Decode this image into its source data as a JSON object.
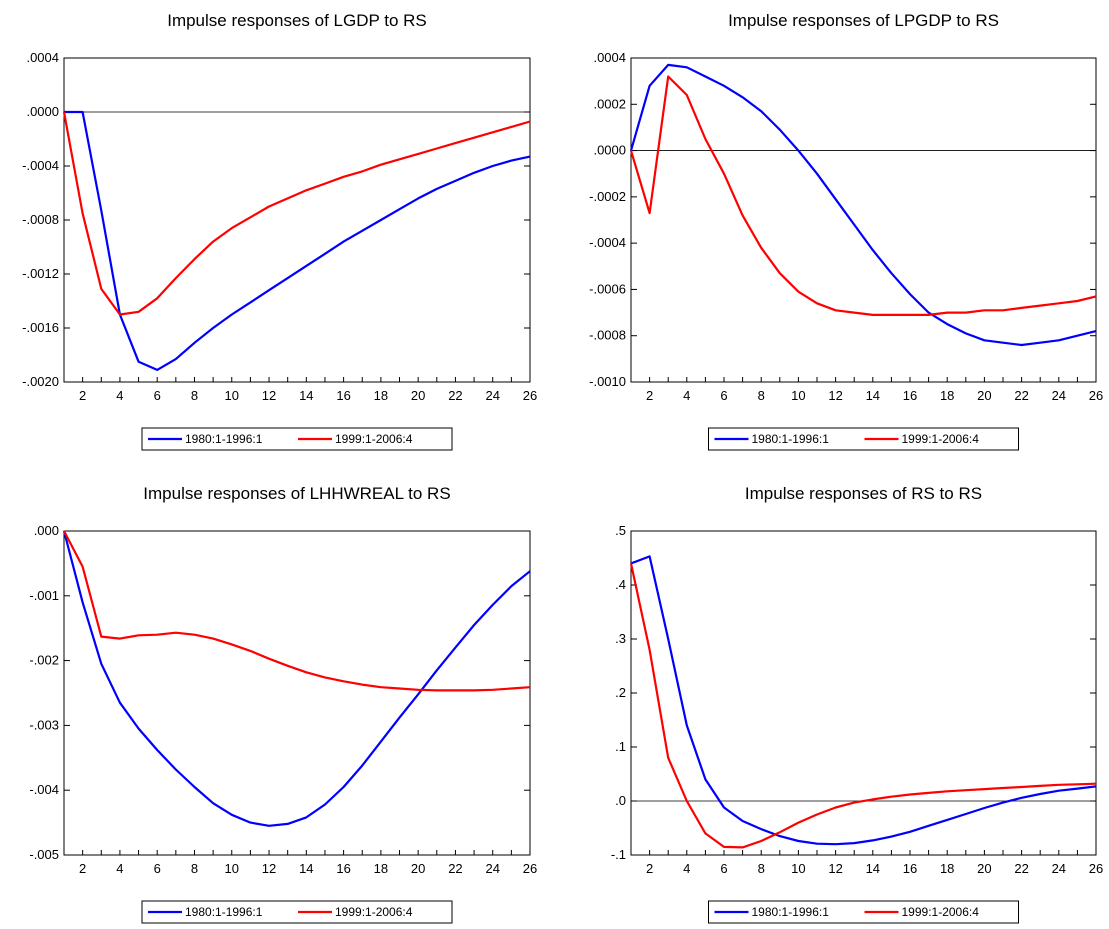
{
  "chart_data": [
    {
      "type": "line",
      "title": "Impulse responses of LGDP to RS",
      "ylim": [
        -0.002,
        0.0004
      ],
      "yticks": [
        ".0004",
        ".0000",
        "-.0004",
        "-.0008",
        "-.0012",
        "-.0016",
        "-.0020"
      ],
      "ytick_values": [
        0.0004,
        0.0,
        -0.0004,
        -0.0008,
        -0.0012,
        -0.0016,
        -0.002
      ],
      "xlim": [
        1,
        26
      ],
      "xticks": [
        "2",
        "4",
        "6",
        "8",
        "10",
        "12",
        "14",
        "16",
        "18",
        "20",
        "22",
        "24",
        "26"
      ],
      "zero_line": true,
      "x": [
        1,
        2,
        3,
        4,
        5,
        6,
        7,
        8,
        9,
        10,
        11,
        12,
        13,
        14,
        15,
        16,
        17,
        18,
        19,
        20,
        21,
        22,
        23,
        24,
        25,
        26
      ],
      "series": [
        {
          "name": "1980:1-1996:1",
          "color": "#0000ff",
          "values": [
            0,
            0,
            -0.00073,
            -0.0015,
            -0.00185,
            -0.00191,
            -0.00183,
            -0.00171,
            -0.0016,
            -0.0015,
            -0.00141,
            -0.00132,
            -0.00123,
            -0.00114,
            -0.00105,
            -0.00096,
            -0.00088,
            -0.0008,
            -0.00072,
            -0.00064,
            -0.00057,
            -0.00051,
            -0.00045,
            -0.0004,
            -0.00036,
            -0.00033
          ]
        },
        {
          "name": "1999:1-2006:4",
          "color": "#ff0000",
          "values": [
            0,
            -0.00075,
            -0.00131,
            -0.0015,
            -0.00148,
            -0.00138,
            -0.00123,
            -0.00109,
            -0.00096,
            -0.00086,
            -0.00078,
            -0.0007,
            -0.00064,
            -0.00058,
            -0.00053,
            -0.00048,
            -0.00044,
            -0.00039,
            -0.00035,
            -0.00031,
            -0.00027,
            -0.00023,
            -0.00019,
            -0.00015,
            -0.00011,
            -7e-05
          ]
        }
      ]
    },
    {
      "type": "line",
      "title": "Impulse responses of LPGDP to RS",
      "ylim": [
        -0.001,
        0.0004
      ],
      "yticks": [
        ".0004",
        ".0002",
        ".0000",
        "-.0002",
        "-.0004",
        "-.0006",
        "-.0008",
        "-.0010"
      ],
      "ytick_values": [
        0.0004,
        0.0002,
        0.0,
        -0.0002,
        -0.0004,
        -0.0006,
        -0.0008,
        -0.001
      ],
      "xlim": [
        1,
        26
      ],
      "xticks": [
        "2",
        "4",
        "6",
        "8",
        "10",
        "12",
        "14",
        "16",
        "18",
        "20",
        "22",
        "24",
        "26"
      ],
      "zero_line": true,
      "x": [
        1,
        2,
        3,
        4,
        5,
        6,
        7,
        8,
        9,
        10,
        11,
        12,
        13,
        14,
        15,
        16,
        17,
        18,
        19,
        20,
        21,
        22,
        23,
        24,
        25,
        26
      ],
      "series": [
        {
          "name": "1980:1-1996:1",
          "color": "#0000ff",
          "values": [
            0,
            0.00028,
            0.00037,
            0.00036,
            0.00032,
            0.00028,
            0.00023,
            0.00017,
            9e-05,
            0.0,
            -0.0001,
            -0.00021,
            -0.00032,
            -0.00043,
            -0.00053,
            -0.00062,
            -0.0007,
            -0.00075,
            -0.00079,
            -0.00082,
            -0.00083,
            -0.00084,
            -0.00083,
            -0.00082,
            -0.0008,
            -0.00078
          ]
        },
        {
          "name": "1999:1-2006:4",
          "color": "#ff0000",
          "values": [
            0,
            -0.00027,
            0.00032,
            0.00024,
            5e-05,
            -0.0001,
            -0.00028,
            -0.00042,
            -0.00053,
            -0.00061,
            -0.00066,
            -0.00069,
            -0.0007,
            -0.00071,
            -0.00071,
            -0.00071,
            -0.00071,
            -0.0007,
            -0.0007,
            -0.00069,
            -0.00069,
            -0.00068,
            -0.00067,
            -0.00066,
            -0.00065,
            -0.00063
          ]
        }
      ]
    },
    {
      "type": "line",
      "title": "Impulse responses of LHHWREAL to RS",
      "ylim": [
        -0.005,
        0.0
      ],
      "yticks": [
        ".000",
        "-.001",
        "-.002",
        "-.003",
        "-.004",
        "-.005"
      ],
      "ytick_values": [
        0.0,
        -0.001,
        -0.002,
        -0.003,
        -0.004,
        -0.005
      ],
      "xlim": [
        1,
        26
      ],
      "xticks": [
        "2",
        "4",
        "6",
        "8",
        "10",
        "12",
        "14",
        "16",
        "18",
        "20",
        "22",
        "24",
        "26"
      ],
      "zero_line": false,
      "x": [
        1,
        2,
        3,
        4,
        5,
        6,
        7,
        8,
        9,
        10,
        11,
        12,
        13,
        14,
        15,
        16,
        17,
        18,
        19,
        20,
        21,
        22,
        23,
        24,
        25,
        26
      ],
      "series": [
        {
          "name": "1980:1-1996:1",
          "color": "#0000ff",
          "values": [
            0,
            -0.0011,
            -0.00205,
            -0.00265,
            -0.00305,
            -0.00338,
            -0.00368,
            -0.00395,
            -0.0042,
            -0.00438,
            -0.0045,
            -0.00455,
            -0.00452,
            -0.00442,
            -0.00422,
            -0.00395,
            -0.00362,
            -0.00325,
            -0.00288,
            -0.00252,
            -0.00215,
            -0.0018,
            -0.00145,
            -0.00114,
            -0.00085,
            -0.00062
          ]
        },
        {
          "name": "1999:1-2006:4",
          "color": "#ff0000",
          "values": [
            0,
            -0.00055,
            -0.00163,
            -0.00166,
            -0.00161,
            -0.0016,
            -0.00157,
            -0.0016,
            -0.00166,
            -0.00175,
            -0.00185,
            -0.00197,
            -0.00208,
            -0.00218,
            -0.00226,
            -0.00232,
            -0.00237,
            -0.00241,
            -0.00243,
            -0.00245,
            -0.00246,
            -0.00246,
            -0.00246,
            -0.00245,
            -0.00243,
            -0.00241
          ]
        }
      ]
    },
    {
      "type": "line",
      "title": "Impulse responses of RS to RS",
      "ylim": [
        -0.1,
        0.5
      ],
      "yticks": [
        ".5",
        ".4",
        ".3",
        ".2",
        ".1",
        ".0",
        "-.1"
      ],
      "ytick_values": [
        0.5,
        0.4,
        0.3,
        0.2,
        0.1,
        0.0,
        -0.1
      ],
      "xlim": [
        1,
        26
      ],
      "xticks": [
        "2",
        "4",
        "6",
        "8",
        "10",
        "12",
        "14",
        "16",
        "18",
        "20",
        "22",
        "24",
        "26"
      ],
      "zero_line": true,
      "x": [
        1,
        2,
        3,
        4,
        5,
        6,
        7,
        8,
        9,
        10,
        11,
        12,
        13,
        14,
        15,
        16,
        17,
        18,
        19,
        20,
        21,
        22,
        23,
        24,
        25,
        26
      ],
      "series": [
        {
          "name": "1980:1-1996:1",
          "color": "#0000ff",
          "values": [
            0.44,
            0.453,
            0.3,
            0.14,
            0.04,
            -0.012,
            -0.037,
            -0.052,
            -0.065,
            -0.074,
            -0.079,
            -0.08,
            -0.078,
            -0.073,
            -0.066,
            -0.057,
            -0.046,
            -0.035,
            -0.024,
            -0.013,
            -0.003,
            0.006,
            0.013,
            0.019,
            0.023,
            0.027
          ]
        },
        {
          "name": "1999:1-2006:4",
          "color": "#ff0000",
          "values": [
            0.44,
            0.28,
            0.08,
            0.0,
            -0.06,
            -0.085,
            -0.086,
            -0.074,
            -0.058,
            -0.04,
            -0.025,
            -0.012,
            -0.003,
            0.003,
            0.008,
            0.012,
            0.015,
            0.018,
            0.02,
            0.022,
            0.024,
            0.026,
            0.028,
            0.03,
            0.031,
            0.032
          ]
        }
      ]
    }
  ]
}
